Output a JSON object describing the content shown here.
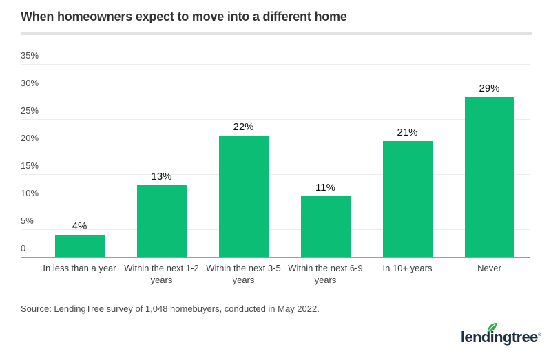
{
  "header": {
    "title": "When homeowners expect to move into a different home"
  },
  "chart_data": {
    "type": "bar",
    "title": "When homeowners expect to move into a different home",
    "categories": [
      "In less than a year",
      "Within the next 1-2 years",
      "Within the next 3-5 years",
      "Within the next 6-9 years",
      "In 10+ years",
      "Never"
    ],
    "values": [
      4,
      13,
      22,
      11,
      21,
      29
    ],
    "value_labels": [
      "4%",
      "13%",
      "22%",
      "11%",
      "21%",
      "29%"
    ],
    "xlabel": "",
    "ylabel": "",
    "ylim": [
      0,
      35
    ],
    "yticks": [
      {
        "value": 0,
        "label": "0"
      },
      {
        "value": 5,
        "label": "5%"
      },
      {
        "value": 10,
        "label": "10%"
      },
      {
        "value": 15,
        "label": "15%"
      },
      {
        "value": 20,
        "label": "20%"
      },
      {
        "value": 25,
        "label": "25%"
      },
      {
        "value": 30,
        "label": "30%"
      },
      {
        "value": 35,
        "label": "35%"
      }
    ],
    "grid": true,
    "legend": "none",
    "bar_color": "#0cbe75"
  },
  "footer": {
    "source": "Source: LendingTree survey of 1,048 homebuyers, conducted in May 2022.",
    "logo_text": "lendingtree",
    "logo_trademark": "®"
  },
  "colors": {
    "bar": "#0cbe75",
    "leaf_green": "#2fae49",
    "logo_navy": "#1d2f42",
    "gridline": "#ececec",
    "baseline": "#9b9b9b"
  }
}
